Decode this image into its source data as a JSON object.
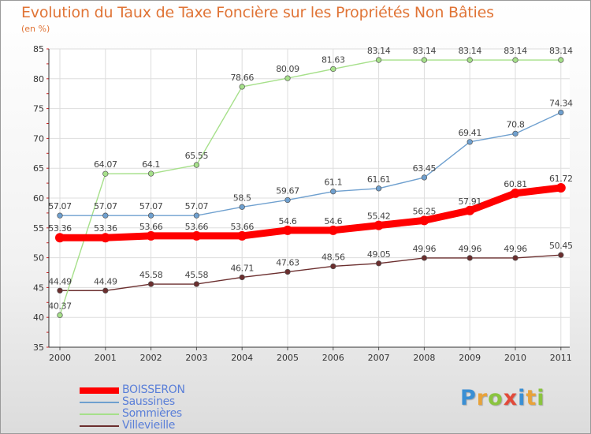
{
  "title": "Evolution du Taux de Taxe Foncière sur les Propriétés Non Bâties",
  "subtitle": "(en %)",
  "logo": {
    "letters": [
      "P",
      "r",
      "o",
      "x",
      "i",
      "t",
      "i"
    ],
    "colors": [
      "#3a8fd4",
      "#e8a23a",
      "#8ac43f",
      "#e24a3a",
      "#3a8fd4",
      "#e8a23a",
      "#8ac43f"
    ]
  },
  "chart_data": {
    "type": "line",
    "title": "Evolution du Taux de Taxe Foncière sur les Propriétés Non Bâties",
    "ylabel": "(en %)",
    "xlabel": "",
    "x": [
      "2000",
      "2001",
      "2002",
      "2003",
      "2004",
      "2005",
      "2006",
      "2007",
      "2008",
      "2009",
      "2010",
      "2011"
    ],
    "ylim": [
      35,
      85
    ],
    "yticks": [
      35,
      40,
      45,
      50,
      55,
      60,
      65,
      70,
      75,
      80,
      85
    ],
    "grid": true,
    "legend_position": "bottom-left",
    "series": [
      {
        "name": "BOISSERON",
        "color": "#ff0000",
        "values": [
          53.36,
          53.36,
          53.66,
          53.66,
          53.66,
          54.6,
          54.6,
          55.42,
          56.25,
          57.91,
          60.81,
          61.72
        ],
        "labels": [
          "53.36",
          "53.36",
          "53.66",
          "53.66",
          "53.66",
          "54.6",
          "54.6",
          "55.42",
          "56.25",
          "57.91",
          "60.81",
          "61.72"
        ]
      },
      {
        "name": "Saussines",
        "color": "#6fa0cf",
        "values": [
          57.07,
          57.07,
          57.07,
          57.07,
          58.5,
          59.67,
          61.1,
          61.61,
          63.45,
          69.41,
          70.8,
          74.34
        ],
        "labels": [
          "57.07",
          "57.07",
          "57.07",
          "57.07",
          "58.5",
          "59.67",
          "61.1",
          "61.61",
          "63.45",
          "69.41",
          "70.8",
          "74.34"
        ]
      },
      {
        "name": "Sommières",
        "color": "#a6e08a",
        "values": [
          40.37,
          64.07,
          64.1,
          65.55,
          78.66,
          80.09,
          81.63,
          83.14,
          83.14,
          83.14,
          83.14,
          83.14
        ],
        "labels": [
          "40.37",
          "64.07",
          "64.1",
          "65.55",
          "78.66",
          "80.09",
          "81.63",
          "83.14",
          "83.14",
          "83.14",
          "83.14",
          "83.14"
        ]
      },
      {
        "name": "Villevieille",
        "color": "#6b2e2e",
        "values": [
          44.49,
          44.49,
          45.58,
          45.58,
          46.71,
          47.63,
          48.56,
          49.05,
          49.96,
          49.96,
          49.96,
          50.45
        ],
        "labels": [
          "44.49",
          "44.49",
          "45.58",
          "45.58",
          "46.71",
          "47.63",
          "48.56",
          "49.05",
          "49.96",
          "49.96",
          "49.96",
          "50.45"
        ]
      }
    ]
  }
}
